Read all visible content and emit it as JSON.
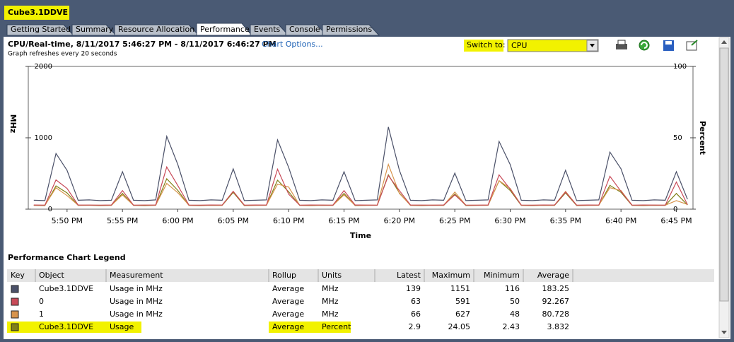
{
  "window": {
    "title": "Cube3.1DDVE"
  },
  "tabs": [
    "Getting Started",
    "Summary",
    "Resource Allocation",
    "Performance",
    "Events",
    "Console",
    "Permissions"
  ],
  "active_tab": 3,
  "header": {
    "title": "CPU/Real-time, 8/11/2017 5:46:27 PM - 8/11/2017 6:46:27 PM",
    "link": "Chart Options...",
    "note": "Graph refreshes every 20 seconds",
    "switch_label": "Switch to:",
    "switch_value": "CPU"
  },
  "chart_data": {
    "type": "line",
    "xlabel": "Time",
    "ylabel": "MHz",
    "y2label": "Percent",
    "categories": [
      null,
      null,
      null,
      "5:50 PM",
      null,
      null,
      null,
      null,
      "5:55 PM",
      null,
      null,
      null,
      null,
      "6:00 PM",
      null,
      null,
      null,
      null,
      "6:05 PM",
      null,
      null,
      null,
      null,
      "6:10 PM",
      null,
      null,
      null,
      null,
      "6:15 PM",
      null,
      null,
      null,
      null,
      "6:20 PM",
      null,
      null,
      null,
      null,
      "6:25 PM",
      null,
      null,
      null,
      null,
      "6:30 PM",
      null,
      null,
      null,
      null,
      "6:35 PM",
      null,
      null,
      null,
      null,
      "6:40 PM",
      null,
      null,
      null,
      null,
      "6:45 PM",
      null
    ],
    "ylim": [
      0,
      2000
    ],
    "yticks": [
      0,
      1000,
      2000
    ],
    "y2lim": [
      0,
      100
    ],
    "y2ticks": [
      0,
      50,
      100
    ],
    "series": [
      {
        "color": "#4a5068",
        "values": [
          125,
          120,
          780,
          545,
          125,
          130,
          120,
          125,
          525,
          125,
          120,
          130,
          1020,
          625,
          125,
          120,
          130,
          125,
          565,
          120,
          125,
          130,
          970,
          585,
          125,
          120,
          130,
          125,
          525,
          120,
          125,
          130,
          1151,
          545,
          125,
          120,
          130,
          125,
          505,
          120,
          125,
          130,
          950,
          625,
          125,
          120,
          130,
          125,
          545,
          120,
          125,
          130,
          800,
          565,
          125,
          120,
          130,
          125,
          525,
          139
        ]
      },
      {
        "color": "#c84a58",
        "values": [
          58,
          56,
          410,
          290,
          58,
          57,
          56,
          58,
          260,
          56,
          57,
          58,
          591,
          330,
          57,
          56,
          58,
          57,
          250,
          56,
          58,
          57,
          560,
          210,
          56,
          58,
          57,
          56,
          260,
          58,
          57,
          56,
          470,
          260,
          58,
          57,
          56,
          58,
          200,
          57,
          56,
          58,
          480,
          280,
          57,
          56,
          58,
          57,
          240,
          56,
          58,
          57,
          460,
          250,
          56,
          58,
          57,
          56,
          380,
          63
        ]
      },
      {
        "color": "#d8944c",
        "values": [
          55,
          54,
          300,
          190,
          55,
          56,
          54,
          55,
          200,
          54,
          56,
          55,
          360,
          230,
          55,
          54,
          56,
          55,
          250,
          54,
          55,
          56,
          350,
          310,
          55,
          54,
          56,
          55,
          200,
          54,
          55,
          56,
          627,
          220,
          55,
          54,
          56,
          55,
          240,
          54,
          55,
          56,
          400,
          290,
          55,
          54,
          56,
          55,
          250,
          54,
          55,
          56,
          300,
          260,
          55,
          54,
          56,
          55,
          120,
          66
        ]
      },
      {
        "color": "#808018",
        "axis": "y2",
        "values": [
          2.6,
          2.5,
          16.3,
          11.4,
          2.6,
          2.7,
          2.5,
          2.6,
          11.0,
          2.6,
          2.5,
          2.7,
          21.3,
          13.1,
          2.6,
          2.5,
          2.7,
          2.6,
          11.8,
          2.5,
          2.6,
          2.7,
          20.3,
          12.2,
          2.6,
          2.5,
          2.7,
          2.6,
          11.0,
          2.5,
          2.6,
          2.7,
          24.05,
          11.4,
          2.6,
          2.5,
          2.7,
          2.6,
          10.6,
          2.5,
          2.6,
          2.7,
          19.9,
          13.1,
          2.6,
          2.5,
          2.7,
          2.6,
          11.4,
          2.5,
          2.6,
          2.7,
          16.7,
          11.8,
          2.6,
          2.5,
          2.7,
          2.6,
          11.0,
          2.9
        ]
      }
    ]
  },
  "legend_table": {
    "title": "Performance Chart Legend",
    "columns": [
      "Key",
      "Object",
      "Measurement",
      "Rollup",
      "Units",
      "Latest",
      "Maximum",
      "Minimum",
      "Average"
    ],
    "rows": [
      [
        "Cube3.1DDVE",
        "Usage in MHz",
        "Average",
        "MHz",
        139,
        1151,
        116,
        183.25
      ],
      [
        "0",
        "Usage in MHz",
        "Average",
        "MHz",
        63,
        591,
        50,
        92.267
      ],
      [
        "1",
        "Usage in MHz",
        "Average",
        "MHz",
        66,
        627,
        48,
        80.728
      ],
      [
        "Cube3.1DDVE",
        "Usage",
        "Average",
        "Percent",
        2.9,
        24.05,
        2.43,
        3.832
      ]
    ],
    "highlighted_row": 3
  }
}
